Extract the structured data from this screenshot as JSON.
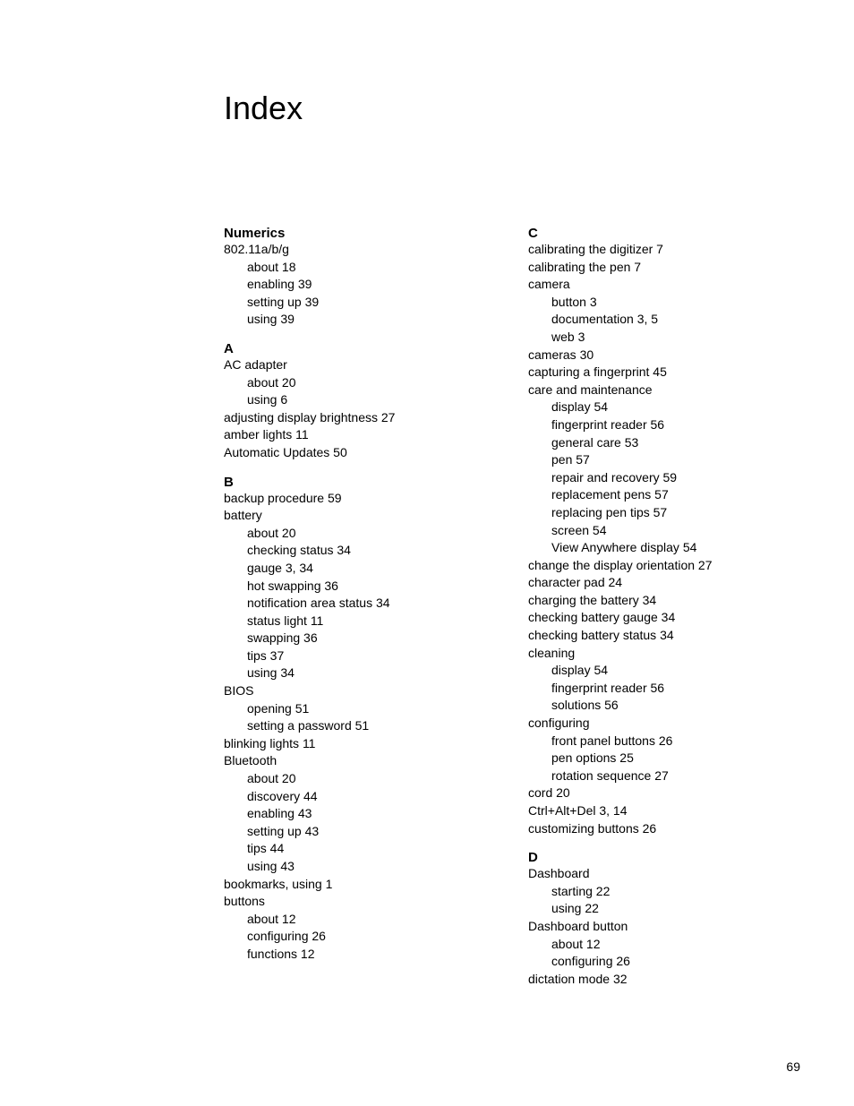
{
  "title": "Index",
  "page_number": "69",
  "columns": [
    {
      "sections": [
        {
          "head": "Numerics",
          "entries": [
            {
              "level": 0,
              "text": "802.11a/b/g"
            },
            {
              "level": 1,
              "text": "about 18"
            },
            {
              "level": 1,
              "text": "enabling 39"
            },
            {
              "level": 1,
              "text": "setting up 39"
            },
            {
              "level": 1,
              "text": "using 39"
            }
          ]
        },
        {
          "head": "A",
          "entries": [
            {
              "level": 0,
              "text": "AC adapter"
            },
            {
              "level": 1,
              "text": "about 20"
            },
            {
              "level": 1,
              "text": "using 6"
            },
            {
              "level": 0,
              "text": "adjusting display brightness 27"
            },
            {
              "level": 0,
              "text": "amber lights 11"
            },
            {
              "level": 0,
              "text": "Automatic Updates 50"
            }
          ]
        },
        {
          "head": "B",
          "entries": [
            {
              "level": 0,
              "text": "backup procedure 59"
            },
            {
              "level": 0,
              "text": "battery"
            },
            {
              "level": 1,
              "text": "about 20"
            },
            {
              "level": 1,
              "text": "checking status 34"
            },
            {
              "level": 1,
              "text": "gauge 3, 34"
            },
            {
              "level": 1,
              "text": "hot swapping 36"
            },
            {
              "level": 1,
              "text": "notification area status 34"
            },
            {
              "level": 1,
              "text": "status light 11"
            },
            {
              "level": 1,
              "text": "swapping 36"
            },
            {
              "level": 1,
              "text": "tips 37"
            },
            {
              "level": 1,
              "text": "using 34"
            },
            {
              "level": 0,
              "text": "BIOS"
            },
            {
              "level": 1,
              "text": "opening 51"
            },
            {
              "level": 1,
              "text": "setting a password 51"
            },
            {
              "level": 0,
              "text": "blinking lights 11"
            },
            {
              "level": 0,
              "text": "Bluetooth"
            },
            {
              "level": 1,
              "text": "about 20"
            },
            {
              "level": 1,
              "text": "discovery 44"
            },
            {
              "level": 1,
              "text": "enabling 43"
            },
            {
              "level": 1,
              "text": "setting up 43"
            },
            {
              "level": 1,
              "text": "tips 44"
            },
            {
              "level": 1,
              "text": "using 43"
            },
            {
              "level": 0,
              "text": "bookmarks, using 1"
            },
            {
              "level": 0,
              "text": "buttons"
            },
            {
              "level": 1,
              "text": "about 12"
            },
            {
              "level": 1,
              "text": "configuring 26"
            },
            {
              "level": 1,
              "text": "functions 12"
            }
          ]
        }
      ]
    },
    {
      "sections": [
        {
          "head": "C",
          "entries": [
            {
              "level": 0,
              "text": "calibrating the digitizer 7"
            },
            {
              "level": 0,
              "text": "calibrating the pen 7"
            },
            {
              "level": 0,
              "text": "camera"
            },
            {
              "level": 1,
              "text": "button 3"
            },
            {
              "level": 1,
              "text": "documentation 3, 5"
            },
            {
              "level": 1,
              "text": "web 3"
            },
            {
              "level": 0,
              "text": "cameras 30"
            },
            {
              "level": 0,
              "text": "capturing a fingerprint 45"
            },
            {
              "level": 0,
              "text": "care and maintenance"
            },
            {
              "level": 1,
              "text": "display 54"
            },
            {
              "level": 1,
              "text": "fingerprint reader 56"
            },
            {
              "level": 1,
              "text": "general care 53"
            },
            {
              "level": 1,
              "text": "pen 57"
            },
            {
              "level": 1,
              "text": "repair and recovery 59"
            },
            {
              "level": 1,
              "text": "replacement pens 57"
            },
            {
              "level": 1,
              "text": "replacing pen tips 57"
            },
            {
              "level": 1,
              "text": "screen 54"
            },
            {
              "level": 1,
              "text": "View Anywhere display 54"
            },
            {
              "level": 0,
              "text": "change the display orientation 27"
            },
            {
              "level": 0,
              "text": "character pad 24"
            },
            {
              "level": 0,
              "text": "charging the battery 34"
            },
            {
              "level": 0,
              "text": "checking battery gauge 34"
            },
            {
              "level": 0,
              "text": "checking battery status 34"
            },
            {
              "level": 0,
              "text": "cleaning"
            },
            {
              "level": 1,
              "text": "display 54"
            },
            {
              "level": 1,
              "text": "fingerprint reader 56"
            },
            {
              "level": 1,
              "text": "solutions 56"
            },
            {
              "level": 0,
              "text": "configuring"
            },
            {
              "level": 1,
              "text": "front panel buttons 26"
            },
            {
              "level": 1,
              "text": "pen options 25"
            },
            {
              "level": 1,
              "text": "rotation sequence 27"
            },
            {
              "level": 0,
              "text": "cord 20"
            },
            {
              "level": 0,
              "text": "Ctrl+Alt+Del 3, 14"
            },
            {
              "level": 0,
              "text": "customizing buttons 26"
            }
          ]
        },
        {
          "head": "D",
          "entries": [
            {
              "level": 0,
              "text": "Dashboard"
            },
            {
              "level": 1,
              "text": "starting 22"
            },
            {
              "level": 1,
              "text": "using 22"
            },
            {
              "level": 0,
              "text": "Dashboard button"
            },
            {
              "level": 1,
              "text": "about 12"
            },
            {
              "level": 1,
              "text": "configuring 26"
            },
            {
              "level": 0,
              "text": "dictation mode 32"
            }
          ]
        }
      ]
    }
  ]
}
